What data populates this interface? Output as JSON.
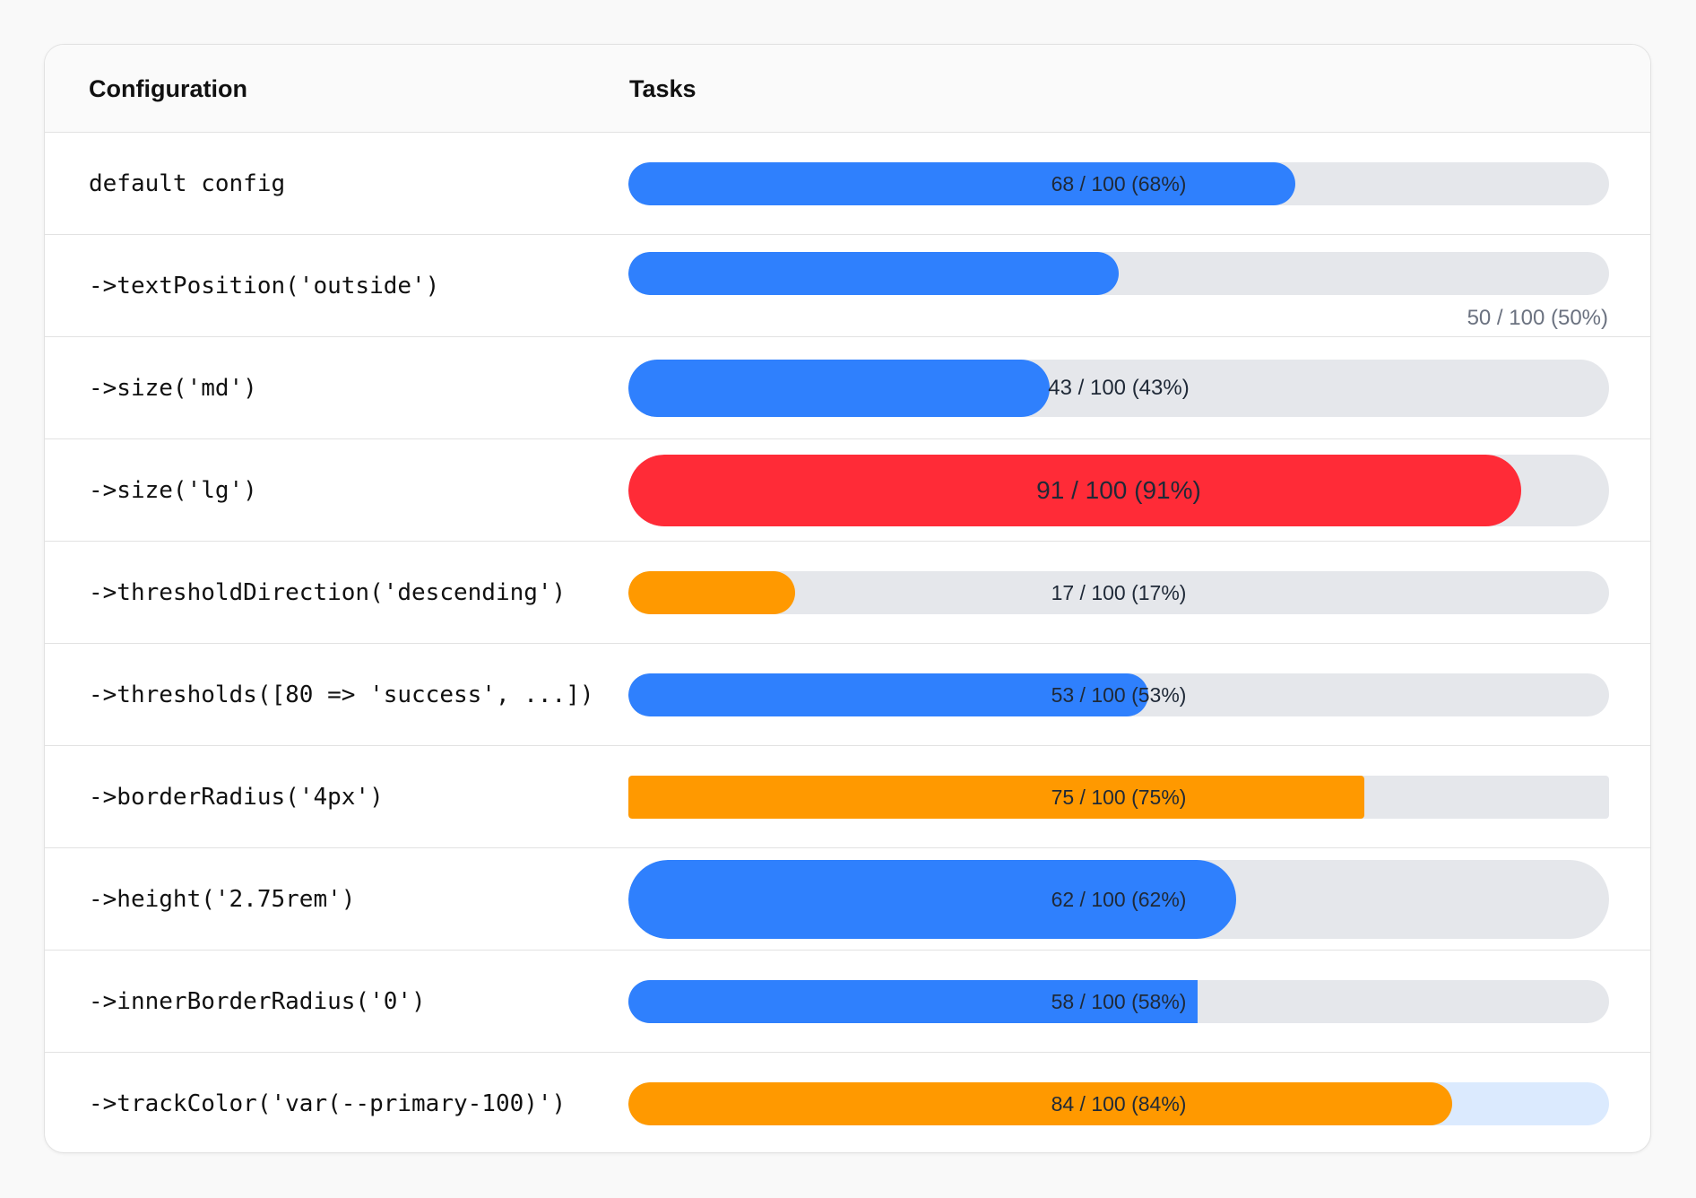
{
  "colors": {
    "primary": "#2f80fd",
    "danger": "#ff2b37",
    "warning": "#ff9900",
    "track_default": "#e5e7eb",
    "track_primary_100": "#dbeafe"
  },
  "table": {
    "headers": {
      "configuration": "Configuration",
      "tasks": "Tasks"
    },
    "rows": [
      {
        "config": "default config",
        "value": 68,
        "max": 100,
        "label": "68 / 100 (68%)",
        "color": "primary",
        "track": "track_default",
        "text_position": "inside",
        "size": "sm"
      },
      {
        "config": "->textPosition('outside')",
        "value": 50,
        "max": 100,
        "label": "50 / 100 (50%)",
        "color": "primary",
        "track": "track_default",
        "text_position": "outside",
        "size": "sm"
      },
      {
        "config": "->size('md')",
        "value": 43,
        "max": 100,
        "label": "43 / 100 (43%)",
        "color": "primary",
        "track": "track_default",
        "text_position": "inside",
        "size": "md"
      },
      {
        "config": "->size('lg')",
        "value": 91,
        "max": 100,
        "label": "91 / 100 (91%)",
        "color": "danger",
        "track": "track_default",
        "text_position": "inside",
        "size": "lg"
      },
      {
        "config": "->thresholdDirection('descending')",
        "value": 17,
        "max": 100,
        "label": "17 / 100 (17%)",
        "color": "warning",
        "track": "track_default",
        "text_position": "inside",
        "size": "sm"
      },
      {
        "config": "->thresholds([80 => 'success', ...])",
        "value": 53,
        "max": 100,
        "label": "53 / 100 (53%)",
        "color": "primary",
        "track": "track_default",
        "text_position": "inside",
        "size": "sm"
      },
      {
        "config": "->borderRadius('4px')",
        "value": 75,
        "max": 100,
        "label": "75 / 100 (75%)",
        "color": "warning",
        "track": "track_default",
        "text_position": "inside",
        "size": "sm",
        "border_radius": "4px"
      },
      {
        "config": "->height('2.75rem')",
        "value": 62,
        "max": 100,
        "label": "62 / 100 (62%)",
        "color": "primary",
        "track": "track_default",
        "text_position": "inside",
        "size": "sm",
        "height": "2.75rem"
      },
      {
        "config": "->innerBorderRadius('0')",
        "value": 58,
        "max": 100,
        "label": "58 / 100 (58%)",
        "color": "primary",
        "track": "track_default",
        "text_position": "inside",
        "size": "sm",
        "inner_border_radius": "0"
      },
      {
        "config": "->trackColor('var(--primary-100)')",
        "value": 84,
        "max": 100,
        "label": "84 / 100 (84%)",
        "color": "warning",
        "track": "track_primary_100",
        "text_position": "inside",
        "size": "sm"
      }
    ]
  }
}
